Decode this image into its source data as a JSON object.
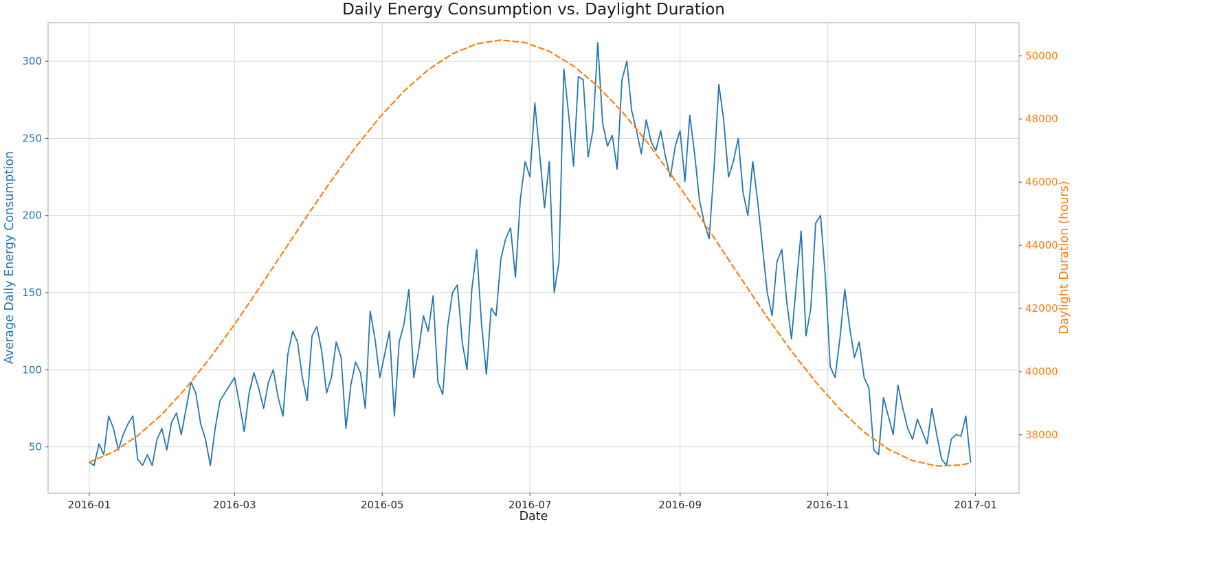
{
  "chart_data": {
    "type": "line",
    "title": "Daily Energy Consumption vs. Daylight Duration",
    "xlabel": "Date",
    "grid": true,
    "legend": "none",
    "x_tick_labels": [
      "2016-01",
      "2016-03",
      "2016-05",
      "2016-07",
      "2016-09",
      "2016-11",
      "2017-01"
    ],
    "x_tick_days": [
      1,
      61,
      122,
      183,
      245,
      306,
      367
    ],
    "x_domain_days": [
      -16,
      385
    ],
    "left_axis": {
      "label": "Average Daily Energy Consumption",
      "color": "#1f77b4",
      "ticks": [
        50,
        100,
        150,
        200,
        250,
        300
      ],
      "ylim": [
        20,
        325
      ]
    },
    "right_axis": {
      "label": "Daylight Duration (hours)",
      "color": "#ff7f0e",
      "ticks": [
        38000,
        40000,
        42000,
        44000,
        46000,
        48000,
        50000
      ],
      "ylim": [
        36150,
        51050
      ]
    },
    "series": [
      {
        "name": "Average Daily Energy Consumption",
        "axis": "left",
        "color": "#1f77b4",
        "style": "solid",
        "x_start_day": 1,
        "x_step_days": 2,
        "values": [
          40,
          38,
          52,
          45,
          70,
          62,
          48,
          58,
          65,
          70,
          42,
          38,
          45,
          38,
          55,
          62,
          48,
          66,
          72,
          58,
          75,
          92,
          85,
          65,
          55,
          38,
          62,
          80,
          85,
          90,
          95,
          78,
          60,
          85,
          98,
          88,
          75,
          92,
          100,
          82,
          70,
          110,
          125,
          118,
          95,
          80,
          122,
          128,
          112,
          85,
          95,
          118,
          108,
          62,
          90,
          105,
          98,
          75,
          138,
          120,
          95,
          110,
          125,
          70,
          118,
          130,
          152,
          95,
          112,
          135,
          125,
          148,
          92,
          84,
          128,
          150,
          155,
          118,
          100,
          152,
          178,
          130,
          97,
          140,
          135,
          172,
          185,
          192,
          160,
          210,
          235,
          225,
          273,
          240,
          205,
          235,
          150,
          170,
          295,
          265,
          232,
          290,
          288,
          238,
          255,
          312,
          260,
          245,
          252,
          230,
          288,
          300,
          268,
          255,
          240,
          262,
          248,
          242,
          255,
          238,
          225,
          245,
          255,
          222,
          265,
          240,
          210,
          195,
          185,
          230,
          285,
          262,
          225,
          235,
          250,
          215,
          200,
          235,
          210,
          180,
          150,
          135,
          170,
          178,
          145,
          120,
          155,
          190,
          122,
          140,
          195,
          200,
          160,
          102,
          95,
          120,
          152,
          128,
          108,
          118,
          95,
          88,
          48,
          45,
          82,
          70,
          58,
          90,
          75,
          62,
          55,
          68,
          60,
          52,
          75,
          58,
          42,
          38,
          55,
          58,
          57,
          70,
          40
        ]
      },
      {
        "name": "Daylight Duration (hours)",
        "axis": "right",
        "color": "#ff7f0e",
        "style": "dashed",
        "x_days": [
          1,
          11,
          21,
          31,
          41,
          51,
          61,
          71,
          81,
          91,
          101,
          111,
          121,
          131,
          141,
          151,
          161,
          171,
          181,
          191,
          201,
          211,
          221,
          231,
          241,
          251,
          261,
          271,
          281,
          291,
          301,
          311,
          321,
          331,
          341,
          351,
          361,
          365
        ],
        "values": [
          37131,
          37458,
          37972,
          38646,
          39484,
          40445,
          41495,
          42623,
          43779,
          44935,
          46055,
          47108,
          48060,
          48888,
          49561,
          50064,
          50379,
          50499,
          50419,
          50142,
          49677,
          49037,
          48237,
          47306,
          46270,
          45164,
          44011,
          42856,
          41719,
          40648,
          39673,
          38810,
          38083,
          37545,
          37181,
          37012,
          37042,
          37110
        ]
      }
    ],
    "style_colors": {
      "grid": "#d4d4d4",
      "spine": "#b5b5b5",
      "tick": "#444444",
      "x_tick_label": "#262626"
    }
  }
}
